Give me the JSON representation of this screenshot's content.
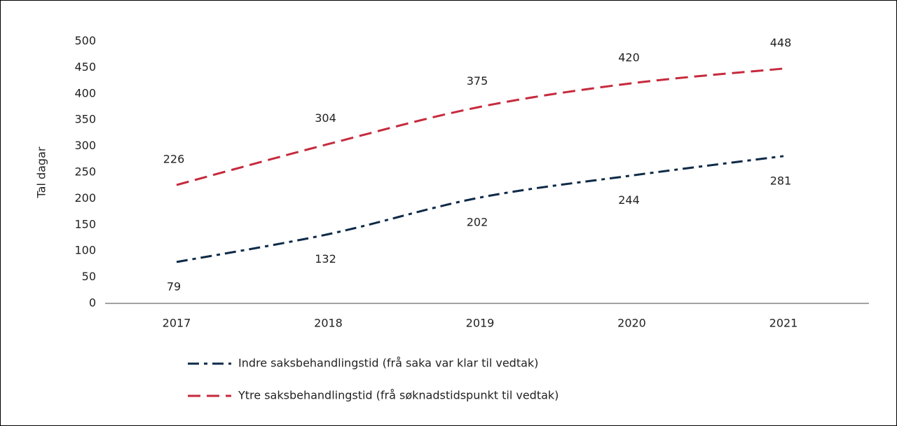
{
  "chart_data": {
    "type": "line",
    "categories": [
      "2017",
      "2018",
      "2019",
      "2020",
      "2021"
    ],
    "series": [
      {
        "name": "Indre saksbehandlingstid (frå saka var klar til vedtak)",
        "color": "#0e2a47",
        "dash": "dashdot",
        "values": [
          79,
          132,
          202,
          244,
          281
        ]
      },
      {
        "name": "Ytre saksbehandlingstid (frå søknadstidspunkt til vedtak)",
        "color": "#c62a3d",
        "dash": "dashed",
        "values": [
          226,
          304,
          375,
          420,
          448
        ]
      }
    ],
    "y_label": "Tal dagar",
    "ylim": [
      0,
      500
    ],
    "yticks": [
      0,
      50,
      100,
      150,
      200,
      250,
      300,
      350,
      400,
      450,
      500
    ],
    "legend": "bottom-left"
  }
}
